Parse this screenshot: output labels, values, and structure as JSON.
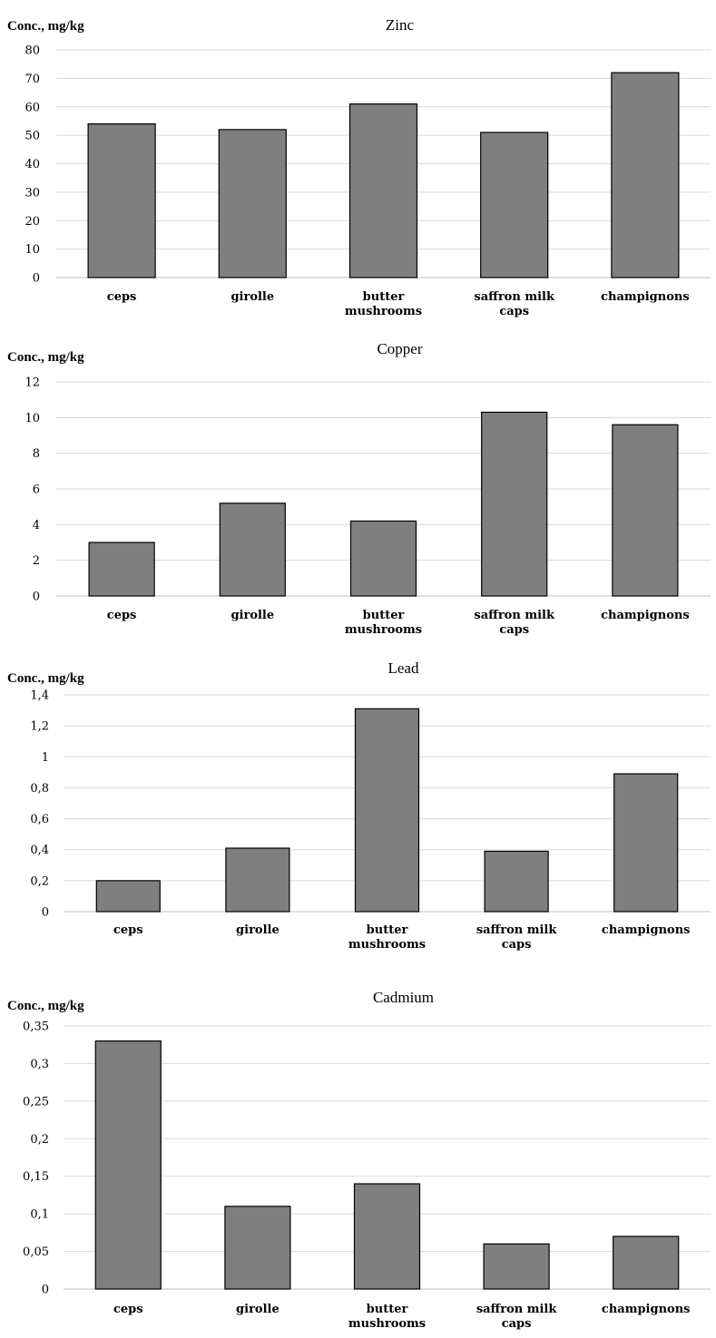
{
  "colors": {
    "bar": "#7f7f7f",
    "bar_outline": "#000000",
    "grid": "#d9d9d9"
  },
  "chart_data": [
    {
      "type": "bar",
      "title": "Zinc",
      "ylabel": "Conc., mg/kg",
      "xlabel": "",
      "categories": [
        "ceps",
        "girolle",
        "butter\nmushrooms",
        "saffron milk\ncaps",
        "champignons"
      ],
      "values": [
        54,
        52,
        61,
        51,
        72
      ],
      "ylim": [
        0,
        80
      ],
      "yticks": [
        "0",
        "10",
        "20",
        "30",
        "40",
        "50",
        "60",
        "70",
        "80"
      ],
      "grid": true
    },
    {
      "type": "bar",
      "title": "Copper",
      "ylabel": "Conc., mg/kg",
      "xlabel": "",
      "categories": [
        "ceps",
        "girolle",
        "butter\nmushrooms",
        "saffron milk\ncaps",
        "champignons"
      ],
      "values": [
        3.0,
        5.2,
        4.2,
        10.3,
        9.6
      ],
      "ylim": [
        0,
        12
      ],
      "yticks": [
        "0",
        "2",
        "4",
        "6",
        "8",
        "10",
        "12"
      ],
      "grid": true
    },
    {
      "type": "bar",
      "title": "Lead",
      "ylabel": "Conc., mg/kg",
      "xlabel": "",
      "categories": [
        "ceps",
        "girolle",
        "butter\nmushrooms",
        "saffron milk\ncaps",
        "champignons"
      ],
      "values": [
        0.2,
        0.41,
        1.31,
        0.39,
        0.89
      ],
      "ylim": [
        0,
        1.4
      ],
      "yticks": [
        "0",
        "0,2",
        "0,4",
        "0,6",
        "0,8",
        "1",
        "1,2",
        "1,4"
      ],
      "grid": true
    },
    {
      "type": "bar",
      "title": "Cadmium",
      "ylabel": "Conc., mg/kg",
      "xlabel": "",
      "categories": [
        "ceps",
        "girolle",
        "butter\nmushrooms",
        "saffron milk\ncaps",
        "champignons"
      ],
      "values": [
        0.33,
        0.11,
        0.14,
        0.06,
        0.07
      ],
      "ylim": [
        0,
        0.35
      ],
      "yticks": [
        "0",
        "0,05",
        "0,1",
        "0,15",
        "0,2",
        "0,25",
        "0,3",
        "0,35"
      ],
      "grid": true
    }
  ]
}
